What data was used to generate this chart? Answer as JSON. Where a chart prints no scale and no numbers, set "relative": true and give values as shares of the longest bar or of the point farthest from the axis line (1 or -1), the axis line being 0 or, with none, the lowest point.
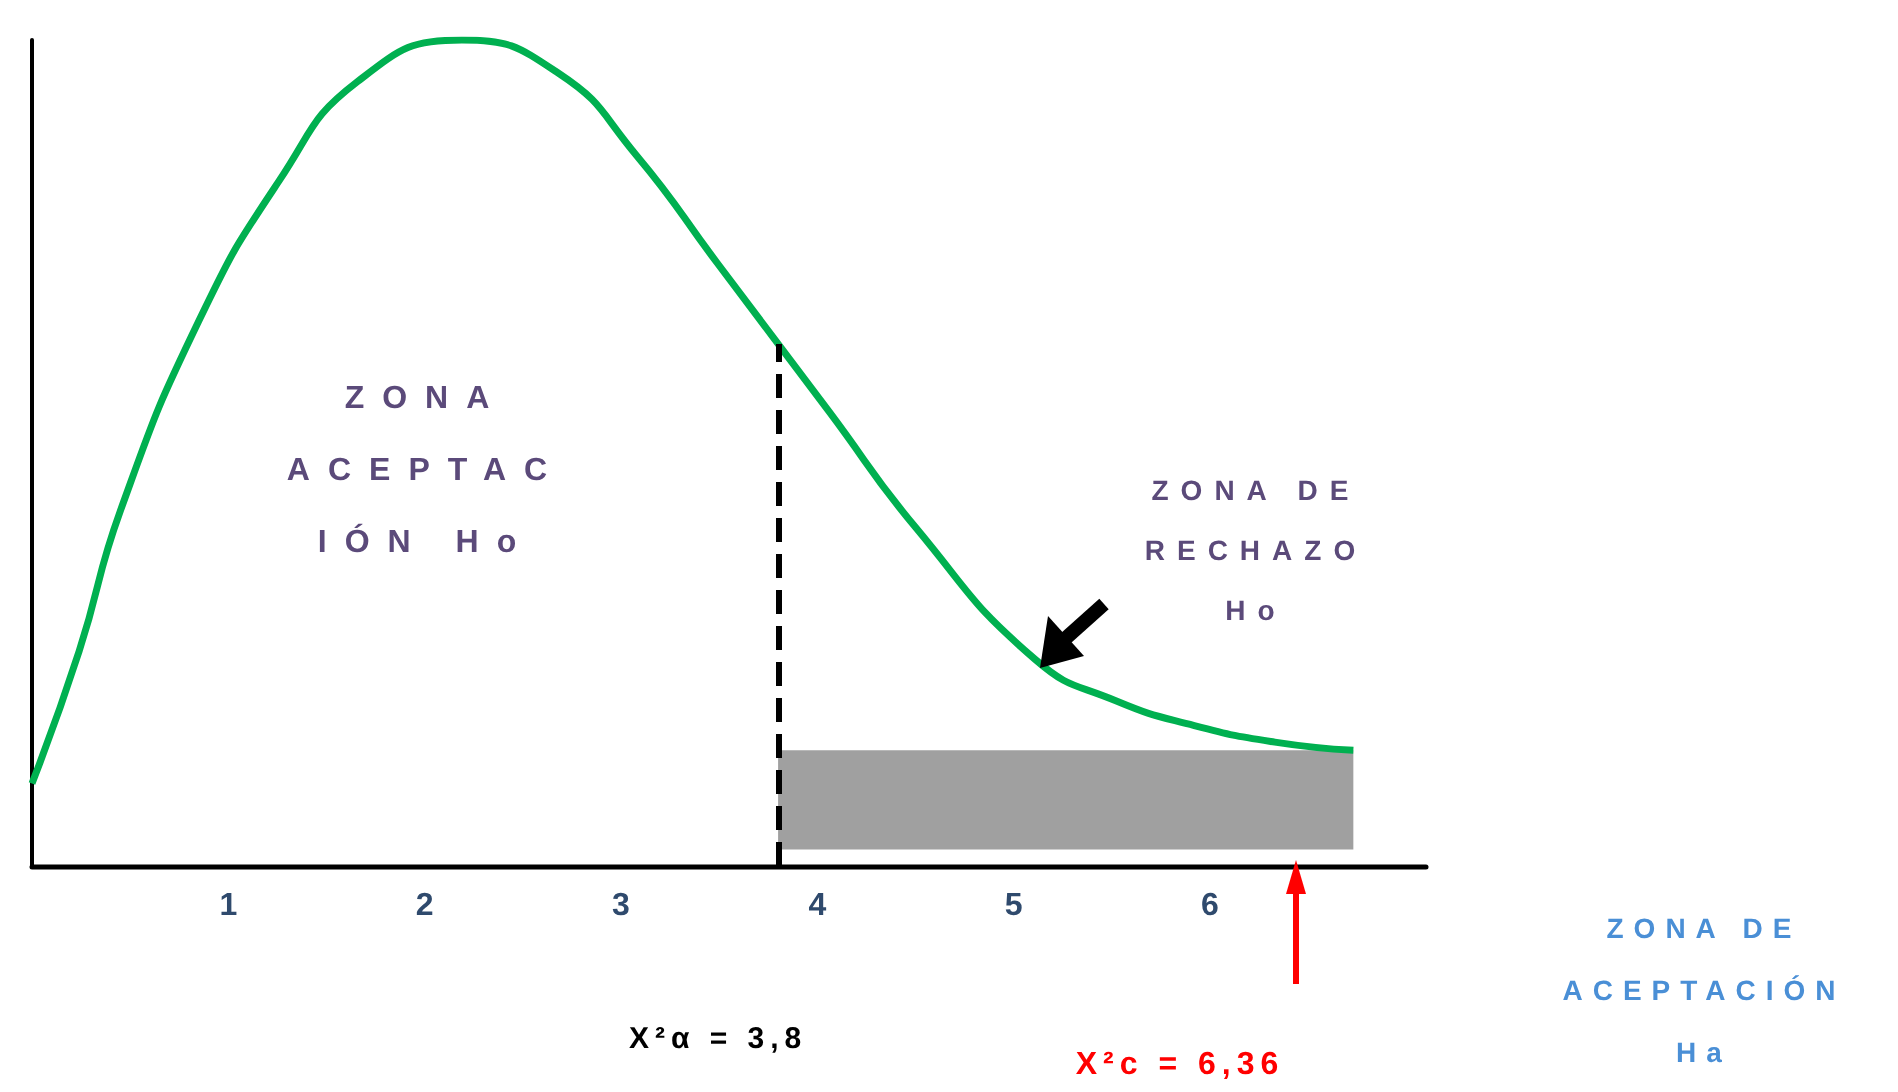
{
  "chart_data": {
    "type": "line",
    "relative": true,
    "x": [
      0,
      0.24,
      0.45,
      0.85,
      1.26,
      1.66,
      2.19,
      2.68,
      3.08,
      3.49,
      4.06,
      4.5,
      5.11,
      5.52,
      5.92,
      6.33,
      6.73
    ],
    "series": [
      {
        "color": "#00b050",
        "values": [
          0.1,
          0.26,
          0.43,
          0.66,
          0.83,
          0.95,
          1,
          0.96,
          0.86,
          0.73,
          0.55,
          0.41,
          0.25,
          0.2,
          0.17,
          0.15,
          0.14
        ]
      }
    ],
    "xlim": [
      0,
      7.1
    ],
    "xticks": [
      1,
      2,
      3,
      4,
      5,
      6
    ],
    "grid": false,
    "marker": "none",
    "line_style": "solid",
    "ref_lines": [
      {
        "axis": "x",
        "value": 3.8,
        "label": "X²α = 3,8",
        "color": "#000000",
        "line_style": "dashed"
      }
    ],
    "bands": [
      {
        "axis": "x",
        "from": 3.8,
        "to": 6.73,
        "color": "#808080"
      }
    ],
    "annotations": [
      "ZONA\nACEPTAC\nIÓN Ho",
      "ZONA DE\nRECHAZO\nHo",
      "ZONA DE\nACEPTACIÓN\nHa",
      "X²c = 6,36"
    ]
  }
}
